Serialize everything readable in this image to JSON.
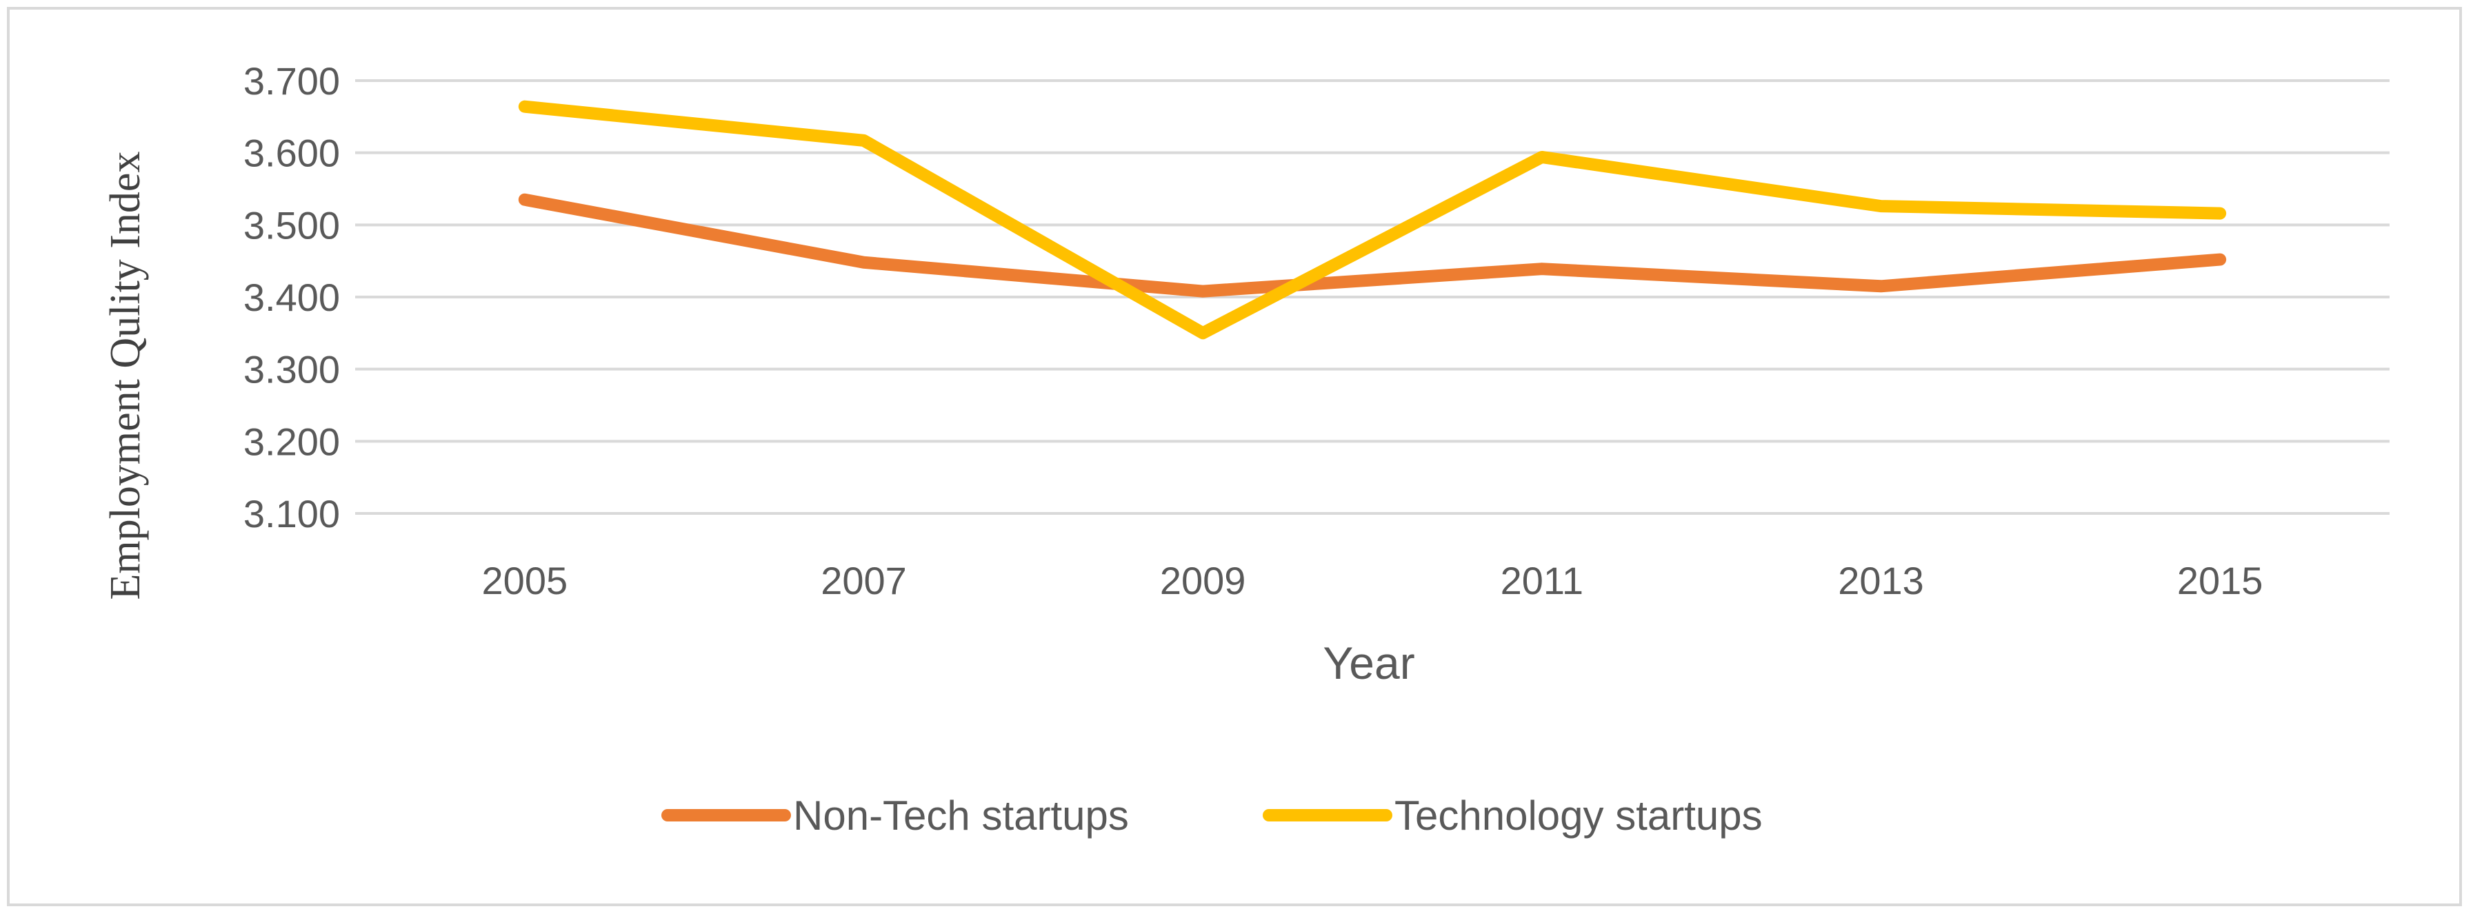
{
  "chart_data": {
    "type": "line",
    "title": "",
    "xlabel": "Year",
    "ylabel": "Employment Qulity Index",
    "categories": [
      "2005",
      "2007",
      "2009",
      "2011",
      "2013",
      "2015"
    ],
    "ylim": [
      3.1,
      3.7
    ],
    "yticks": [
      "3.100",
      "3.200",
      "3.300",
      "3.400",
      "3.500",
      "3.600",
      "3.700"
    ],
    "grid": true,
    "legend_position": "bottom",
    "series": [
      {
        "name": "Non-Tech startups",
        "color": "#ed7d31",
        "values": [
          3.535,
          3.448,
          3.408,
          3.439,
          3.415,
          3.452
        ]
      },
      {
        "name": "Technology startups",
        "color": "#ffc000",
        "values": [
          3.664,
          3.617,
          3.35,
          3.594,
          3.526,
          3.516
        ]
      }
    ]
  }
}
